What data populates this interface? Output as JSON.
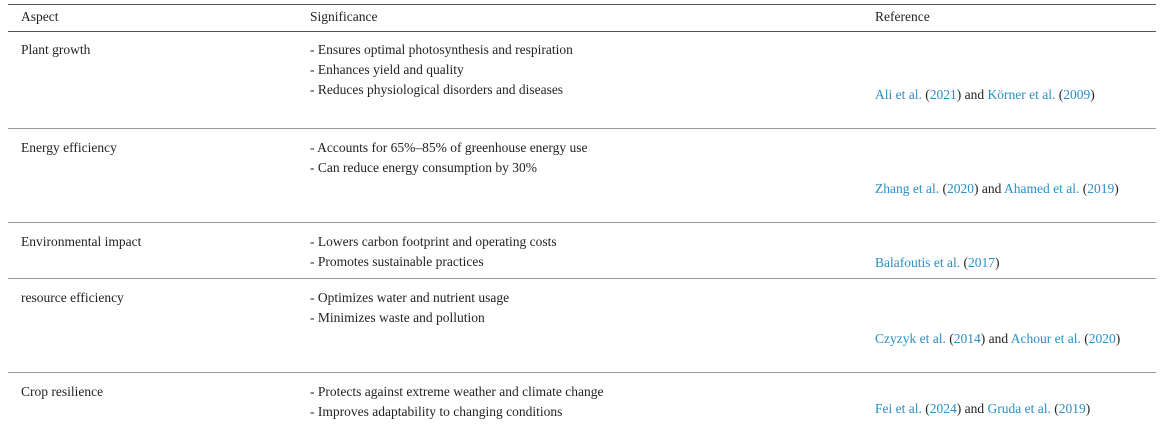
{
  "table": {
    "header": [
      "Aspect",
      "Significance",
      "Reference"
    ],
    "rows": [
      {
        "aspect": "Plant growth",
        "significance": [
          "- Ensures optimal photosynthesis and respiration",
          "- Enhances yield and quality",
          "- Reduces physiological disorders and diseases"
        ],
        "reference": [
          {
            "text": "Ali et al.",
            "cite": true
          },
          {
            "text": " ("
          },
          {
            "text": "2021",
            "cite": true
          },
          {
            "text": ") and "
          },
          {
            "text": "Körner et al.",
            "cite": true
          },
          {
            "text": " ("
          },
          {
            "text": "2009",
            "cite": true
          },
          {
            "text": ")"
          }
        ]
      },
      {
        "aspect": "Energy efficiency",
        "significance": [
          "- Accounts for 65%–85% of greenhouse energy use",
          "- Can reduce energy consumption by 30%"
        ],
        "reference": [
          {
            "text": "Zhang et al.",
            "cite": true
          },
          {
            "text": " ("
          },
          {
            "text": "2020",
            "cite": true
          },
          {
            "text": ") and "
          },
          {
            "text": "Ahamed et al.",
            "cite": true
          },
          {
            "text": " ("
          },
          {
            "text": "2019",
            "cite": true
          },
          {
            "text": ")"
          }
        ]
      },
      {
        "aspect": "Environmental impact",
        "significance": [
          "- Lowers carbon footprint and operating costs",
          "- Promotes sustainable practices"
        ],
        "reference": [
          {
            "text": "Balafoutis et al.",
            "cite": true
          },
          {
            "text": " ("
          },
          {
            "text": "2017",
            "cite": true
          },
          {
            "text": ")"
          }
        ]
      },
      {
        "aspect": "resource efficiency",
        "significance": [
          "- Optimizes water and nutrient usage",
          "- Minimizes waste and pollution"
        ],
        "reference": [
          {
            "text": "Czyzyk et al.",
            "cite": true
          },
          {
            "text": " ("
          },
          {
            "text": "2014",
            "cite": true
          },
          {
            "text": ") and "
          },
          {
            "text": "Achour et al.",
            "cite": true
          },
          {
            "text": " ("
          },
          {
            "text": "2020",
            "cite": true
          },
          {
            "text": ")"
          }
        ]
      },
      {
        "aspect": "Crop resilience",
        "significance": [
          "- Protects against extreme weather and climate change",
          "- Improves adaptability to changing conditions"
        ],
        "reference": [
          {
            "text": "Fei et al.",
            "cite": true
          },
          {
            "text": " ("
          },
          {
            "text": "2024",
            "cite": true
          },
          {
            "text": ") and "
          },
          {
            "text": "Gruda et al.",
            "cite": true
          },
          {
            "text": " ("
          },
          {
            "text": "2019",
            "cite": true
          },
          {
            "text": ")"
          }
        ]
      }
    ]
  }
}
